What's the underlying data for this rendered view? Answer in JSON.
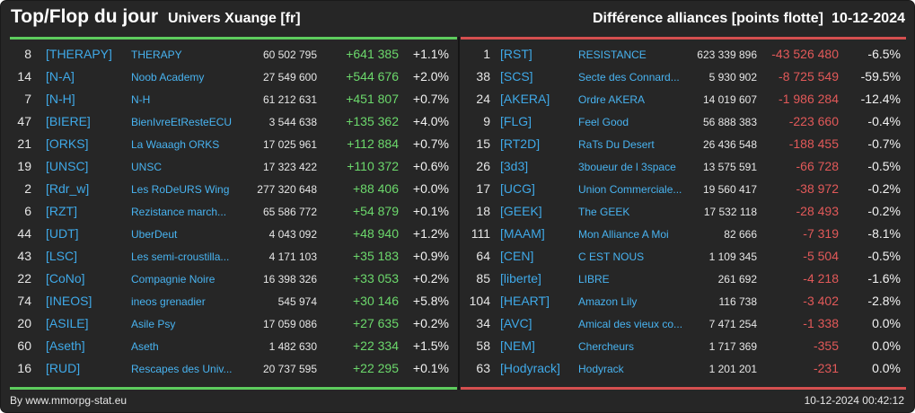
{
  "header": {
    "title": "Top/Flop du jour",
    "universe": "Univers Xuange [fr]",
    "metric": "Différence alliances [points flotte]",
    "date": "10-12-2024"
  },
  "colors": {
    "background": "#262626",
    "gain_bar": "#5dcc5d",
    "loss_bar": "#d54f4f",
    "gain_text": "#6cd96c",
    "loss_text": "#e25959",
    "tag_text": "#3fa9e8"
  },
  "top": [
    {
      "rank": "8",
      "tag": "[THERAPY]",
      "name": "THERAPY",
      "points": "60 502 795",
      "diff": "+641 385",
      "pct": "+1.1%"
    },
    {
      "rank": "14",
      "tag": "[N-A]",
      "name": "Noob Academy",
      "points": "27 549 600",
      "diff": "+544 676",
      "pct": "+2.0%"
    },
    {
      "rank": "7",
      "tag": "[N-H]",
      "name": "N-H",
      "points": "61 212 631",
      "diff": "+451 807",
      "pct": "+0.7%"
    },
    {
      "rank": "47",
      "tag": "[BIERE]",
      "name": "BienIvreEtResteECU",
      "points": "3 544 638",
      "diff": "+135 362",
      "pct": "+4.0%"
    },
    {
      "rank": "21",
      "tag": "[ORKS]",
      "name": "La Waaagh ORKS",
      "points": "17 025 961",
      "diff": "+112 884",
      "pct": "+0.7%"
    },
    {
      "rank": "19",
      "tag": "[UNSC]",
      "name": "UNSC",
      "points": "17 323 422",
      "diff": "+110 372",
      "pct": "+0.6%"
    },
    {
      "rank": "2",
      "tag": "[Rdr_w]",
      "name": "Les RoDeURS Wing",
      "points": "277 320 648",
      "diff": "+88 406",
      "pct": "+0.0%"
    },
    {
      "rank": "6",
      "tag": "[RZT]",
      "name": "Rezistance march...",
      "points": "65 586 772",
      "diff": "+54 879",
      "pct": "+0.1%"
    },
    {
      "rank": "44",
      "tag": "[UDT]",
      "name": "UberDeut",
      "points": "4 043 092",
      "diff": "+48 940",
      "pct": "+1.2%"
    },
    {
      "rank": "43",
      "tag": "[LSC]",
      "name": "Les semi-croustilla...",
      "points": "4 171 103",
      "diff": "+35 183",
      "pct": "+0.9%"
    },
    {
      "rank": "22",
      "tag": "[CoNo]",
      "name": "Compagnie Noire",
      "points": "16 398 326",
      "diff": "+33 053",
      "pct": "+0.2%"
    },
    {
      "rank": "74",
      "tag": "[INEOS]",
      "name": "ineos grenadier",
      "points": "545 974",
      "diff": "+30 146",
      "pct": "+5.8%"
    },
    {
      "rank": "20",
      "tag": "[ASILE]",
      "name": "Asile Psy",
      "points": "17 059 086",
      "diff": "+27 635",
      "pct": "+0.2%"
    },
    {
      "rank": "60",
      "tag": "[Aseth]",
      "name": "Aseth",
      "points": "1 482 630",
      "diff": "+22 334",
      "pct": "+1.5%"
    },
    {
      "rank": "16",
      "tag": "[RUD]",
      "name": "Rescapes des Univ...",
      "points": "20 737 595",
      "diff": "+22 295",
      "pct": "+0.1%"
    }
  ],
  "flop": [
    {
      "rank": "1",
      "tag": "[RST]",
      "name": "RESISTANCE",
      "points": "623 339 896",
      "diff": "-43 526 480",
      "pct": "-6.5%"
    },
    {
      "rank": "38",
      "tag": "[SCS]",
      "name": "Secte des Connard...",
      "points": "5 930 902",
      "diff": "-8 725 549",
      "pct": "-59.5%"
    },
    {
      "rank": "24",
      "tag": "[AKERA]",
      "name": "Ordre AKERA",
      "points": "14 019 607",
      "diff": "-1 986 284",
      "pct": "-12.4%"
    },
    {
      "rank": "9",
      "tag": "[FLG]",
      "name": "Feel Good",
      "points": "56 888 383",
      "diff": "-223 660",
      "pct": "-0.4%"
    },
    {
      "rank": "15",
      "tag": "[RT2D]",
      "name": "RaTs Du Desert",
      "points": "26 436 548",
      "diff": "-188 455",
      "pct": "-0.7%"
    },
    {
      "rank": "26",
      "tag": "[3d3]",
      "name": "3boueur de l 3space",
      "points": "13 575 591",
      "diff": "-66 728",
      "pct": "-0.5%"
    },
    {
      "rank": "17",
      "tag": "[UCG]",
      "name": "Union Commerciale...",
      "points": "19 560 417",
      "diff": "-38 972",
      "pct": "-0.2%"
    },
    {
      "rank": "18",
      "tag": "[GEEK]",
      "name": "The GEEK",
      "points": "17 532 118",
      "diff": "-28 493",
      "pct": "-0.2%"
    },
    {
      "rank": "111",
      "tag": "[MAAM]",
      "name": "Mon Alliance A Moi",
      "points": "82 666",
      "diff": "-7 319",
      "pct": "-8.1%"
    },
    {
      "rank": "64",
      "tag": "[CEN]",
      "name": "C EST NOUS",
      "points": "1 109 345",
      "diff": "-5 504",
      "pct": "-0.5%"
    },
    {
      "rank": "85",
      "tag": "[liberte]",
      "name": "LIBRE",
      "points": "261 692",
      "diff": "-4 218",
      "pct": "-1.6%"
    },
    {
      "rank": "104",
      "tag": "[HEART]",
      "name": "Amazon Lily",
      "points": "116 738",
      "diff": "-3 402",
      "pct": "-2.8%"
    },
    {
      "rank": "34",
      "tag": "[AVC]",
      "name": "Amical des vieux co...",
      "points": "7 471 254",
      "diff": "-1 338",
      "pct": "0.0%"
    },
    {
      "rank": "58",
      "tag": "[NEM]",
      "name": "Chercheurs",
      "points": "1 717 369",
      "diff": "-355",
      "pct": "0.0%"
    },
    {
      "rank": "63",
      "tag": "[Hodyrack]",
      "name": "Hodyrack",
      "points": "1 201 201",
      "diff": "-231",
      "pct": "0.0%"
    }
  ],
  "footer": {
    "credit": "By www.mmorpg-stat.eu",
    "timestamp": "10-12-2024 00:42:12"
  }
}
